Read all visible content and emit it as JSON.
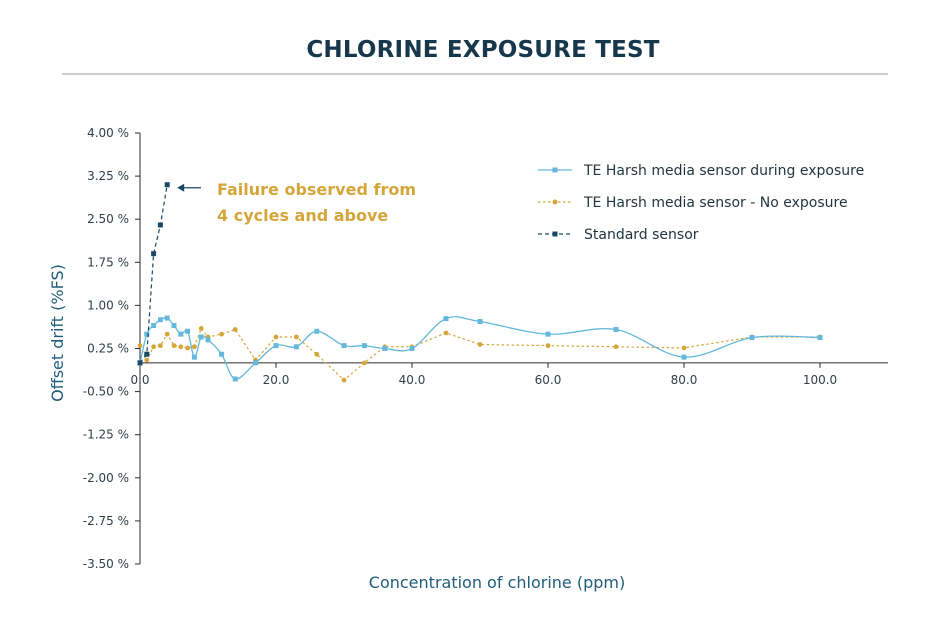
{
  "chart_data": {
    "type": "line",
    "title": "CHLORINE EXPOSURE TEST",
    "xlabel": "Concentration of chlorine (ppm)",
    "ylabel": "Offset drift (%FS)",
    "xlim": [
      0,
      110
    ],
    "ylim": [
      -3.5,
      4.0
    ],
    "x_ticks": [
      "0.0",
      "20.0",
      "40.0",
      "60.0",
      "80.0",
      "100.0"
    ],
    "y_ticks": [
      "4.00 %",
      "3.25 %",
      "2.50 %",
      "1.75 %",
      "1.00 %",
      "0.25 %",
      "-0.50 %",
      "-1.25 %",
      "-2.00 %",
      "-2.75 %",
      "-3.50 %"
    ],
    "x_axis_crosses_y_at": 0,
    "grid": false,
    "legend_position": "top-right",
    "series": [
      {
        "name": "TE Harsh media sensor during exposure",
        "color": "#64b8dc",
        "line_style": "solid",
        "smooth": true,
        "marker": "square",
        "x": [
          0,
          1,
          2,
          3,
          4,
          5,
          6,
          7,
          8,
          9,
          10,
          12,
          14,
          17,
          20,
          23,
          26,
          30,
          33,
          36,
          40,
          45,
          50,
          60,
          70,
          80,
          90,
          100
        ],
        "y": [
          0.0,
          0.5,
          0.65,
          0.75,
          0.78,
          0.65,
          0.5,
          0.55,
          0.1,
          0.45,
          0.4,
          0.15,
          -0.28,
          0.0,
          0.3,
          0.28,
          0.55,
          0.3,
          0.3,
          0.25,
          0.25,
          0.77,
          0.72,
          0.5,
          0.58,
          0.1,
          0.44,
          0.44
        ]
      },
      {
        "name": "TE Harsh media sensor - No exposure",
        "color": "#d4a63a",
        "line_style": "dotted",
        "smooth": false,
        "marker": "circle",
        "x": [
          0,
          1,
          2,
          3,
          4,
          5,
          6,
          7,
          8,
          9,
          10,
          12,
          14,
          17,
          20,
          23,
          26,
          30,
          33,
          36,
          40,
          45,
          50,
          60,
          70,
          80,
          90,
          100
        ],
        "y": [
          0.3,
          0.05,
          0.28,
          0.3,
          0.5,
          0.3,
          0.28,
          0.26,
          0.28,
          0.6,
          0.45,
          0.5,
          0.58,
          0.05,
          0.45,
          0.45,
          0.15,
          -0.3,
          0.0,
          0.28,
          0.28,
          0.52,
          0.32,
          0.3,
          0.28,
          0.26,
          0.45,
          0.45
        ]
      },
      {
        "name": "Standard sensor",
        "color": "#1b4866",
        "line_style": "dashed",
        "smooth": false,
        "marker": "square",
        "x": [
          0,
          1,
          2,
          3,
          4
        ],
        "y": [
          0.0,
          0.15,
          1.9,
          2.4,
          3.1
        ]
      }
    ],
    "annotations": [
      {
        "lines": [
          "Failure observed from",
          "4 cycles and above"
        ],
        "color": "#d4a63a",
        "arrow_color": "#1b4866",
        "points_to": {
          "x": 4,
          "y": 3.1
        }
      }
    ]
  }
}
